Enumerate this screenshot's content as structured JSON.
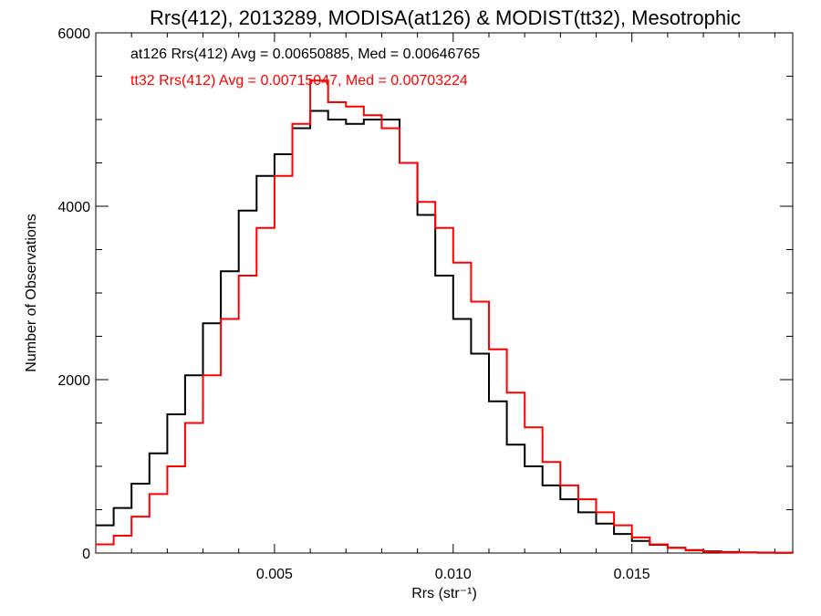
{
  "chart_data": {
    "type": "histogram",
    "title": "Rrs(412), 2013289, MODISA(at126) & MODIST(tt32), Mesotrophic",
    "xlabel": "Rrs (str⁻¹)",
    "ylabel": "Number of Observations",
    "xlim": [
      0.0,
      0.0195
    ],
    "ylim": [
      0,
      6000
    ],
    "x_ticks": [
      0.005,
      0.01,
      0.015
    ],
    "x_tick_labels": [
      "0.005",
      "0.010",
      "0.015"
    ],
    "y_ticks": [
      0,
      2000,
      4000,
      6000
    ],
    "y_tick_labels": [
      "0",
      "2000",
      "4000",
      "6000"
    ],
    "grid": false,
    "annotations": [
      {
        "text": "at126 Rrs(412) Avg = 0.00650885, Med = 0.00646765",
        "color": "#000000"
      },
      {
        "text": "tt32 Rrs(412) Avg = 0.00715047, Med = 0.00703224",
        "color": "#ff0000"
      }
    ],
    "series": [
      {
        "color": "#000000",
        "x": [
          0.0,
          0.0005,
          0.001,
          0.0015,
          0.002,
          0.0025,
          0.003,
          0.0035,
          0.004,
          0.0045,
          0.005,
          0.0055,
          0.006,
          0.0065,
          0.007,
          0.0075,
          0.008,
          0.0085,
          0.009,
          0.0095,
          0.01,
          0.0105,
          0.011,
          0.0115,
          0.012,
          0.0125,
          0.013,
          0.0135,
          0.014,
          0.0145,
          0.015,
          0.0155,
          0.016,
          0.0165,
          0.017,
          0.0175,
          0.018,
          0.0185,
          0.019,
          0.0195
        ],
        "values": [
          320,
          520,
          800,
          1150,
          1600,
          2050,
          2650,
          3250,
          3950,
          4350,
          4600,
          4900,
          5100,
          5000,
          4950,
          5000,
          5000,
          4500,
          3900,
          3200,
          2700,
          2300,
          1750,
          1250,
          1000,
          780,
          620,
          470,
          340,
          220,
          140,
          95,
          60,
          35,
          20,
          12,
          8,
          5,
          3,
          2
        ]
      },
      {
        "color": "#ff0000",
        "x": [
          0.0,
          0.0005,
          0.001,
          0.0015,
          0.002,
          0.0025,
          0.003,
          0.0035,
          0.004,
          0.0045,
          0.005,
          0.0055,
          0.006,
          0.0065,
          0.007,
          0.0075,
          0.008,
          0.0085,
          0.009,
          0.0095,
          0.01,
          0.0105,
          0.011,
          0.0115,
          0.012,
          0.0125,
          0.013,
          0.0135,
          0.014,
          0.0145,
          0.015,
          0.0155,
          0.016,
          0.0165,
          0.017,
          0.0175,
          0.018,
          0.0185,
          0.019,
          0.0195
        ],
        "values": [
          100,
          200,
          420,
          680,
          1000,
          1500,
          2050,
          2700,
          3200,
          3750,
          4350,
          4950,
          5450,
          5200,
          5150,
          5050,
          4900,
          4500,
          4050,
          3750,
          3350,
          2900,
          2350,
          1850,
          1450,
          1050,
          780,
          620,
          470,
          320,
          180,
          100,
          60,
          30,
          15,
          8,
          5,
          3,
          2,
          1
        ]
      }
    ]
  }
}
